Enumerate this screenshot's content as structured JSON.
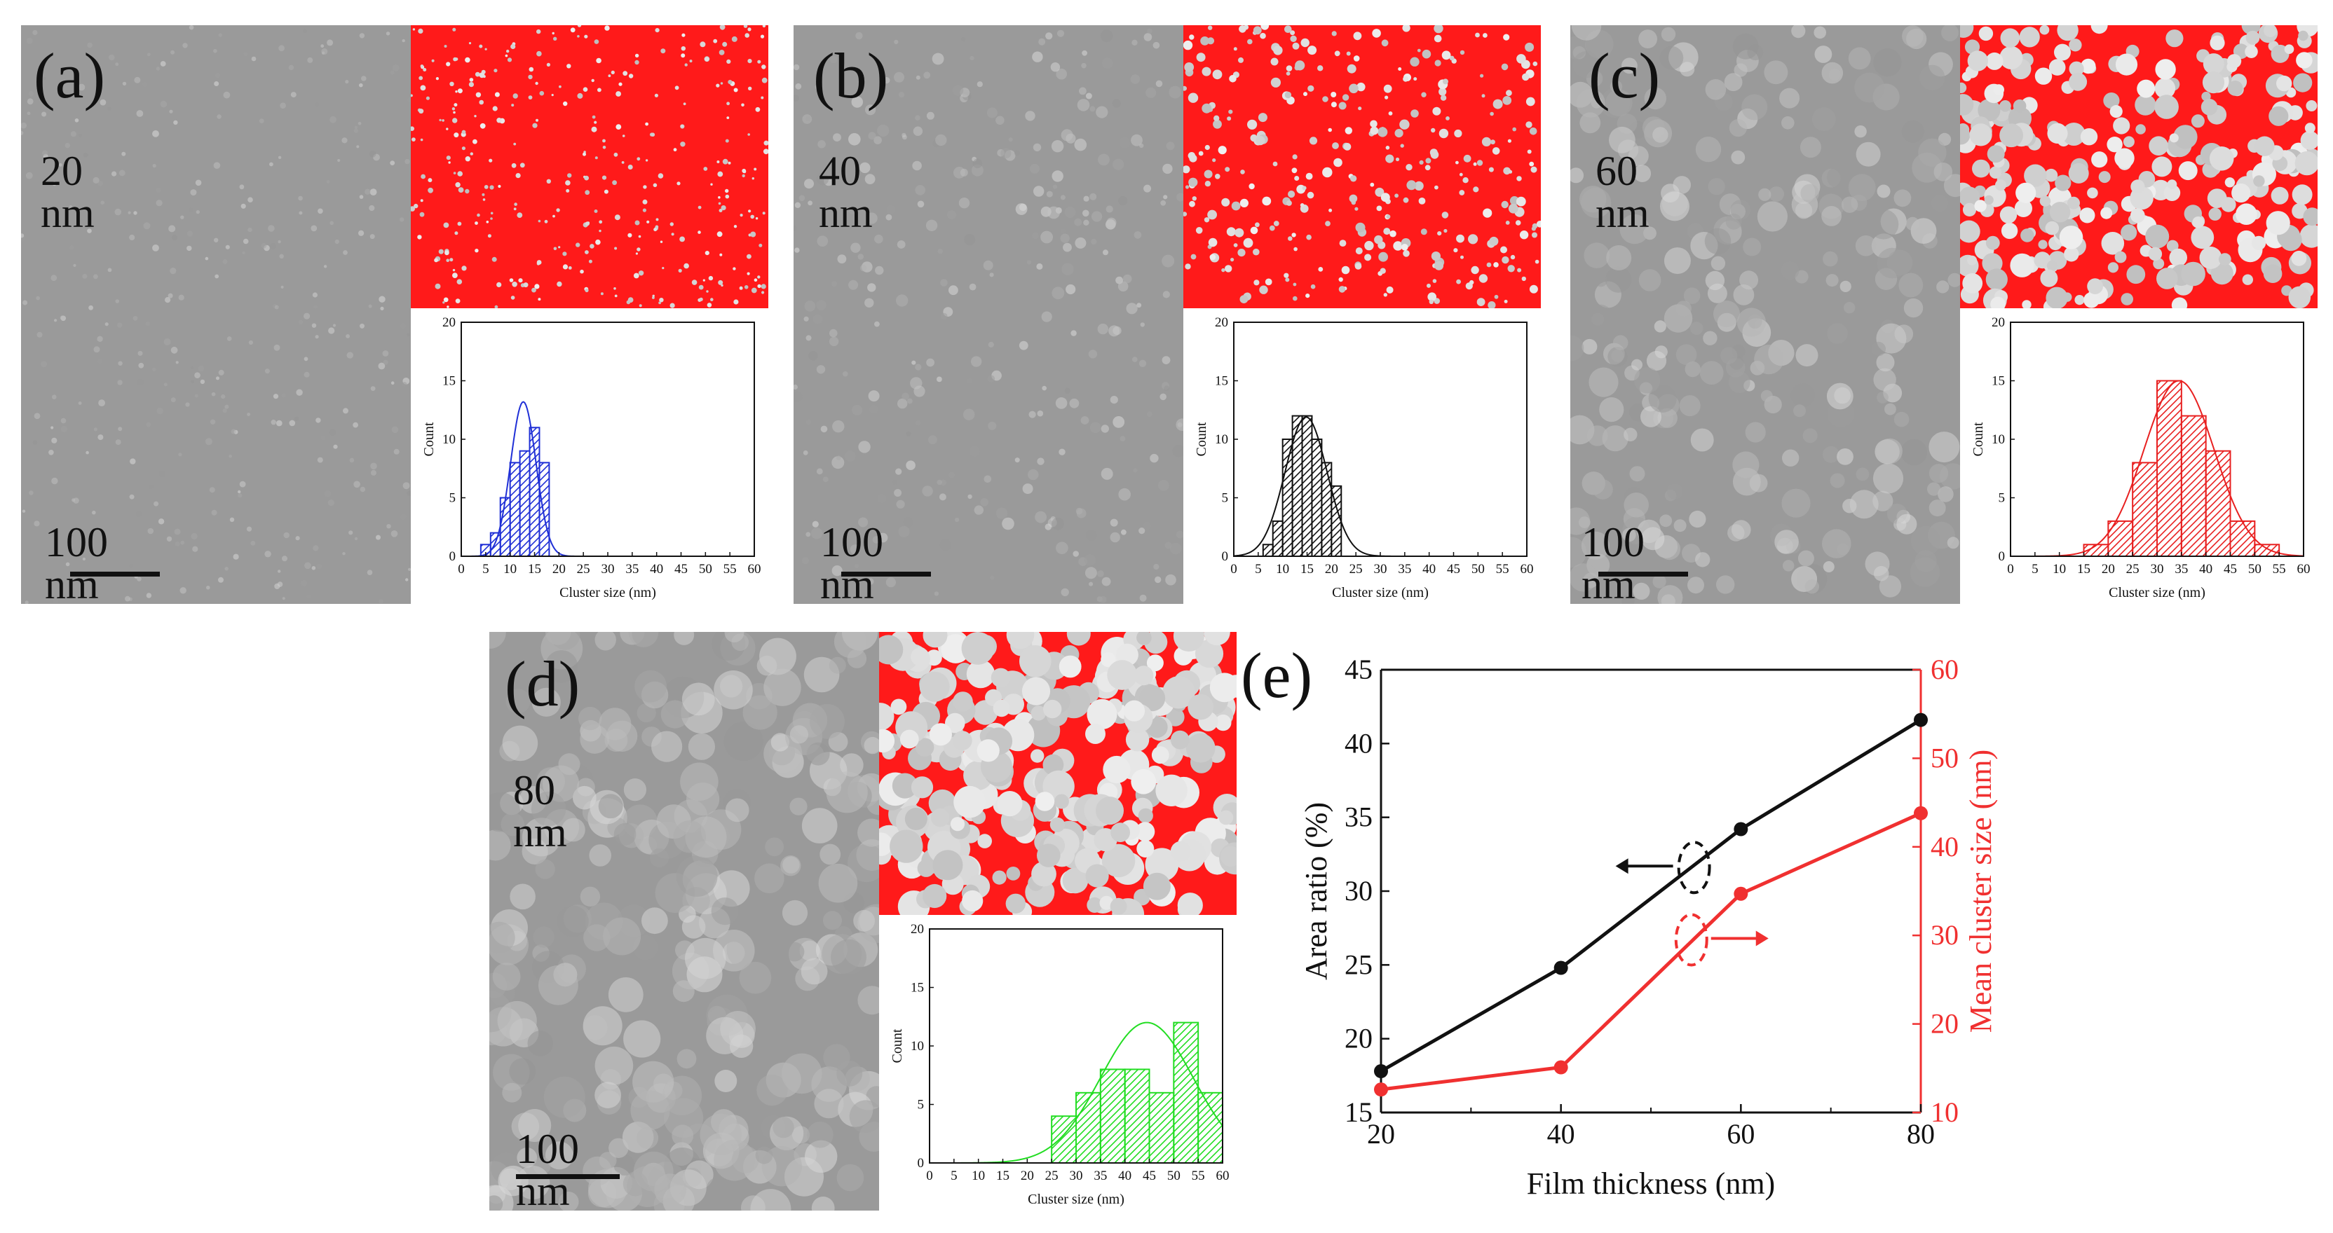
{
  "colors": {
    "sem_base": "#9a9a9a",
    "seg_red": "#ff1a1a",
    "blue": "#1f2fd6",
    "black": "#111111",
    "red": "#e82020",
    "green": "#22dd22",
    "line_red": "#f03030"
  },
  "panels": [
    {
      "id": "a",
      "label": "(a)",
      "thickness": "20 nm",
      "scalebar": "100 nm",
      "grain": "fine",
      "hist": {
        "color": "blue",
        "ylabel": "Count",
        "xlabel": "Cluster size (nm)",
        "yticks": [
          "0",
          "5",
          "10",
          "15",
          "20"
        ],
        "xticks": [
          "0",
          "5",
          "10",
          "15",
          "20",
          "25",
          "30",
          "35",
          "40",
          "45",
          "50",
          "55",
          "60"
        ],
        "ylim": [
          0,
          20
        ],
        "xlim": [
          0,
          60
        ],
        "bins": [
          [
            4,
            6,
            1
          ],
          [
            6,
            8,
            2
          ],
          [
            8,
            10,
            5
          ],
          [
            10,
            12,
            8
          ],
          [
            12,
            14,
            9
          ],
          [
            14,
            16,
            11
          ],
          [
            16,
            18,
            8
          ]
        ],
        "fit": {
          "mu": 12.7,
          "sigma": 2.6,
          "peak": 13.2
        }
      }
    },
    {
      "id": "b",
      "label": "(b)",
      "thickness": "40 nm",
      "scalebar": "100 nm",
      "grain": "small",
      "hist": {
        "color": "black",
        "ylabel": "Count",
        "xlabel": "Cluster size (nm)",
        "yticks": [
          "0",
          "5",
          "10",
          "15",
          "20"
        ],
        "xticks": [
          "0",
          "5",
          "10",
          "15",
          "20",
          "25",
          "30",
          "35",
          "40",
          "45",
          "50",
          "55",
          "60"
        ],
        "ylim": [
          0,
          20
        ],
        "xlim": [
          0,
          60
        ],
        "bins": [
          [
            6,
            8,
            1
          ],
          [
            8,
            10,
            3
          ],
          [
            10,
            12,
            10
          ],
          [
            12,
            14,
            12
          ],
          [
            14,
            16,
            12
          ],
          [
            16,
            18,
            10
          ],
          [
            18,
            20,
            8
          ],
          [
            20,
            22,
            6
          ]
        ],
        "fit": {
          "mu": 14.8,
          "sigma": 4.3,
          "peak": 11.9
        }
      }
    },
    {
      "id": "c",
      "label": "(c)",
      "thickness": "60 nm",
      "scalebar": "100 nm",
      "grain": "medium",
      "hist": {
        "color": "red",
        "ylabel": "Count",
        "xlabel": "Cluster size (nm)",
        "yticks": [
          "0",
          "5",
          "10",
          "15",
          "20"
        ],
        "xticks": [
          "0",
          "5",
          "10",
          "15",
          "20",
          "25",
          "30",
          "35",
          "40",
          "45",
          "50",
          "55",
          "60"
        ],
        "ylim": [
          0,
          20
        ],
        "xlim": [
          0,
          60
        ],
        "bins": [
          [
            15,
            20,
            1
          ],
          [
            20,
            25,
            3
          ],
          [
            25,
            30,
            8
          ],
          [
            30,
            35,
            15
          ],
          [
            35,
            40,
            12
          ],
          [
            40,
            45,
            9
          ],
          [
            45,
            50,
            3
          ],
          [
            50,
            55,
            1
          ]
        ],
        "fit": {
          "mu": 34.5,
          "sigma": 7.2,
          "peak": 15.0
        }
      }
    },
    {
      "id": "d",
      "label": "(d)",
      "thickness": "80 nm",
      "scalebar": "100 nm",
      "grain": "large",
      "hist": {
        "color": "green",
        "ylabel": "Count",
        "xlabel": "Cluster size (nm)",
        "yticks": [
          "0",
          "5",
          "10",
          "15",
          "20"
        ],
        "xticks": [
          "0",
          "5",
          "10",
          "15",
          "20",
          "25",
          "30",
          "35",
          "40",
          "45",
          "50",
          "55",
          "60"
        ],
        "ylim": [
          0,
          20
        ],
        "xlim": [
          0,
          60
        ],
        "bins": [
          [
            25,
            30,
            4
          ],
          [
            30,
            35,
            6
          ],
          [
            35,
            40,
            8
          ],
          [
            40,
            45,
            8
          ],
          [
            45,
            50,
            6
          ],
          [
            50,
            55,
            12
          ],
          [
            55,
            60,
            6
          ]
        ],
        "fit": {
          "mu": 44.5,
          "sigma": 9.5,
          "peak": 12.0
        }
      }
    }
  ],
  "panel_e_label": "(e)",
  "chart_data": {
    "type": "line",
    "title": "",
    "xlabel": "Film thickness (nm)",
    "ylabel_left": "Area ratio (%)",
    "ylabel_right": "Mean cluster size (nm)",
    "x": [
      20,
      40,
      60,
      80
    ],
    "xlim": [
      20,
      80
    ],
    "xticks": [
      "20",
      "40",
      "60",
      "80"
    ],
    "ylim_left": [
      15,
      45
    ],
    "yticks_left": [
      "15",
      "20",
      "25",
      "30",
      "35",
      "40",
      "45"
    ],
    "ylim_right": [
      10,
      60
    ],
    "yticks_right": [
      "10",
      "20",
      "30",
      "40",
      "50",
      "60"
    ],
    "series": [
      {
        "name": "Area ratio",
        "axis": "left",
        "color": "#111111",
        "values": [
          17.8,
          24.8,
          34.2,
          41.6
        ]
      },
      {
        "name": "Mean cluster size",
        "axis": "right",
        "color": "#f03030",
        "values": [
          12.6,
          15.1,
          34.7,
          43.8
        ]
      }
    ]
  }
}
